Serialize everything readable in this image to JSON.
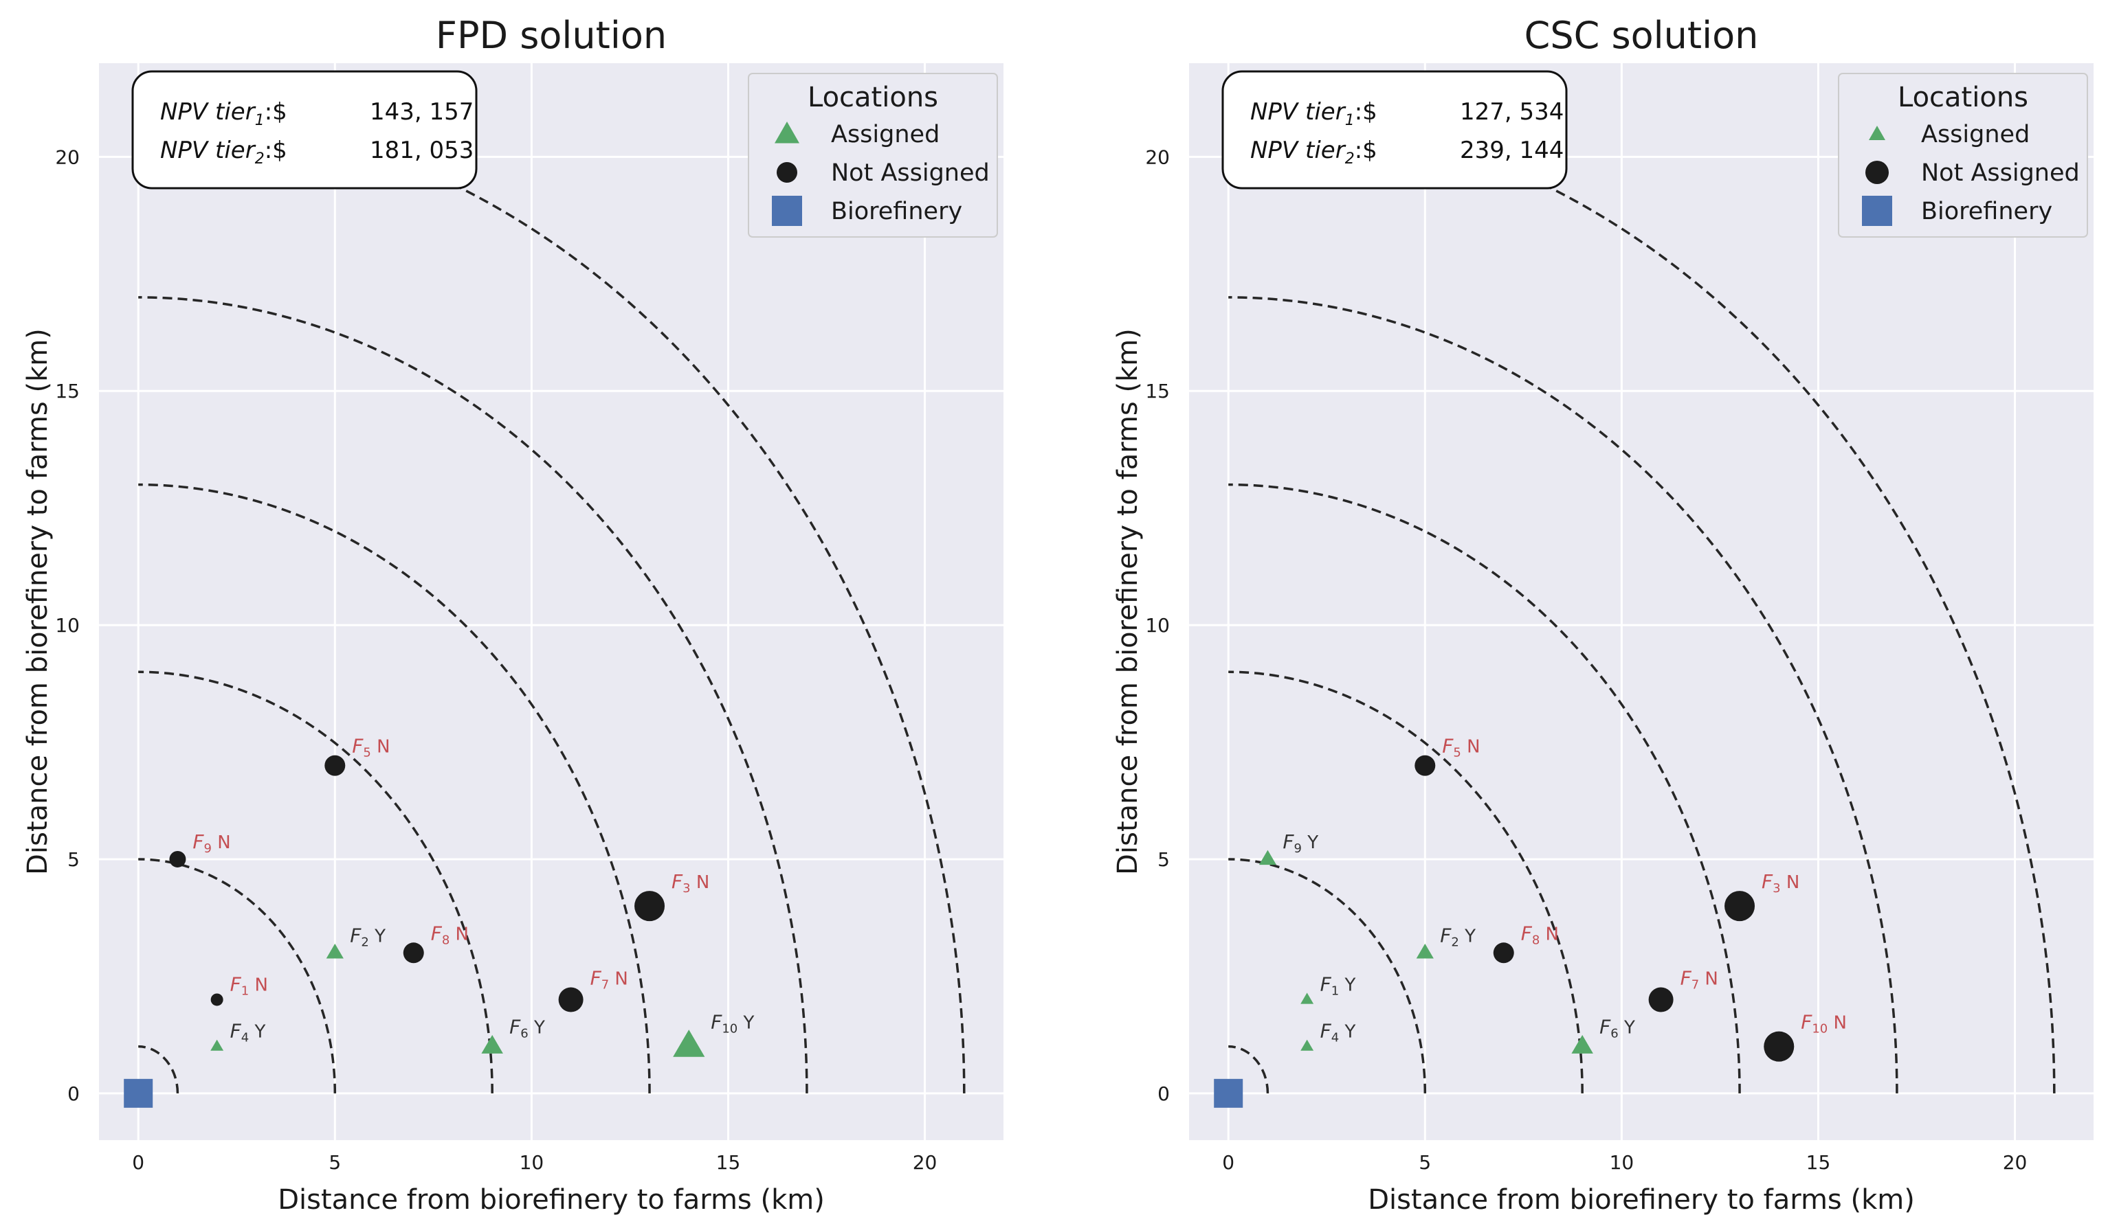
{
  "colors": {
    "assigned": "#55a868",
    "not_assigned": "#1c1c1c",
    "biorefinery": "#4c72b0",
    "label_assigned": "#333333",
    "label_not_assigned": "#c44e52",
    "axes_bg": "#eaeaf2"
  },
  "chart_data": [
    {
      "type": "scatter",
      "title": "FPD solution",
      "xlabel": "Distance from biorefinery to farms (km)",
      "ylabel": "Distance from biorefinery to farms (km)",
      "xlim": [
        -1,
        22
      ],
      "ylim": [
        -1,
        22
      ],
      "xticks": [
        0,
        5,
        10,
        15,
        20
      ],
      "yticks": [
        0,
        5,
        10,
        15,
        20
      ],
      "grid": true,
      "rings": [
        1,
        5,
        9,
        13,
        17,
        21
      ],
      "npv": [
        {
          "label": "NPV tier",
          "sub": "1",
          "prefix": ":$",
          "value": "143, 157"
        },
        {
          "label": "NPV tier",
          "sub": "2",
          "prefix": ":$",
          "value": "181, 053"
        }
      ],
      "legend": {
        "title": "Locations",
        "position": "top-right",
        "items": [
          {
            "label": "Assigned",
            "marker": "triangle"
          },
          {
            "label": "Not Assigned",
            "marker": "circle"
          },
          {
            "label": "Biorefinery",
            "marker": "square"
          }
        ]
      },
      "biorefinery": {
        "x": 0,
        "y": 0
      },
      "farms": [
        {
          "name": "F",
          "sub": "1",
          "x": 2,
          "y": 2,
          "status": "N",
          "size": 1
        },
        {
          "name": "F",
          "sub": "2",
          "x": 5,
          "y": 3,
          "status": "Y",
          "size": 2
        },
        {
          "name": "F",
          "sub": "3",
          "x": 13,
          "y": 4,
          "status": "N",
          "size": 5
        },
        {
          "name": "F",
          "sub": "4",
          "x": 2,
          "y": 1,
          "status": "Y",
          "size": 1
        },
        {
          "name": "F",
          "sub": "5",
          "x": 5,
          "y": 7,
          "status": "N",
          "size": 3
        },
        {
          "name": "F",
          "sub": "6",
          "x": 9,
          "y": 1,
          "status": "Y",
          "size": 3
        },
        {
          "name": "F",
          "sub": "7",
          "x": 11,
          "y": 2,
          "status": "N",
          "size": 4
        },
        {
          "name": "F",
          "sub": "8",
          "x": 7,
          "y": 3,
          "status": "N",
          "size": 3
        },
        {
          "name": "F",
          "sub": "9",
          "x": 1,
          "y": 5,
          "status": "N",
          "size": 2
        },
        {
          "name": "F",
          "sub": "10",
          "x": 14,
          "y": 1,
          "status": "Y",
          "size": 5
        }
      ]
    },
    {
      "type": "scatter",
      "title": "CSC solution",
      "xlabel": "Distance from biorefinery to farms (km)",
      "ylabel": "Distance from biorefinery to farms (km)",
      "xlim": [
        -1,
        22
      ],
      "ylim": [
        -1,
        22
      ],
      "xticks": [
        0,
        5,
        10,
        15,
        20
      ],
      "yticks": [
        0,
        5,
        10,
        15,
        20
      ],
      "grid": true,
      "rings": [
        1,
        5,
        9,
        13,
        17,
        21
      ],
      "npv": [
        {
          "label": "NPV tier",
          "sub": "1",
          "prefix": ":$",
          "value": "127, 534"
        },
        {
          "label": "NPV tier",
          "sub": "2",
          "prefix": ":$",
          "value": "239, 144"
        }
      ],
      "legend": {
        "title": "Locations",
        "position": "top-right",
        "items": [
          {
            "label": "Assigned",
            "marker": "triangle"
          },
          {
            "label": "Not Assigned",
            "marker": "circle"
          },
          {
            "label": "Biorefinery",
            "marker": "square"
          }
        ]
      },
      "biorefinery": {
        "x": 0,
        "y": 0
      },
      "farms": [
        {
          "name": "F",
          "sub": "1",
          "x": 2,
          "y": 2,
          "status": "Y",
          "size": 1
        },
        {
          "name": "F",
          "sub": "2",
          "x": 5,
          "y": 3,
          "status": "Y",
          "size": 2
        },
        {
          "name": "F",
          "sub": "3",
          "x": 13,
          "y": 4,
          "status": "N",
          "size": 5
        },
        {
          "name": "F",
          "sub": "4",
          "x": 2,
          "y": 1,
          "status": "Y",
          "size": 1
        },
        {
          "name": "F",
          "sub": "5",
          "x": 5,
          "y": 7,
          "status": "N",
          "size": 3
        },
        {
          "name": "F",
          "sub": "6",
          "x": 9,
          "y": 1,
          "status": "Y",
          "size": 3
        },
        {
          "name": "F",
          "sub": "7",
          "x": 11,
          "y": 2,
          "status": "N",
          "size": 4
        },
        {
          "name": "F",
          "sub": "8",
          "x": 7,
          "y": 3,
          "status": "N",
          "size": 3
        },
        {
          "name": "F",
          "sub": "9",
          "x": 1,
          "y": 5,
          "status": "Y",
          "size": 2
        },
        {
          "name": "F",
          "sub": "10",
          "x": 14,
          "y": 1,
          "status": "N",
          "size": 5
        }
      ]
    }
  ]
}
